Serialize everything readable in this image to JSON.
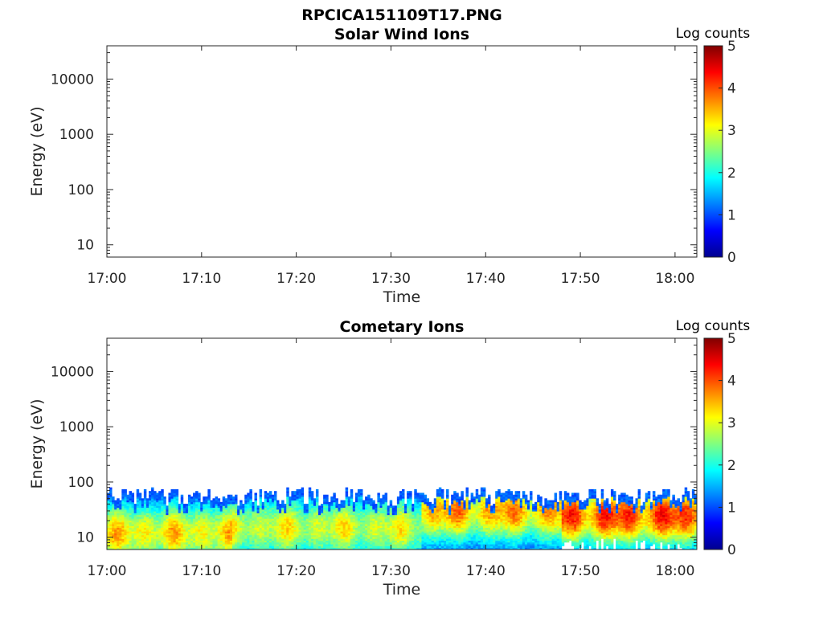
{
  "figure": {
    "title": "RPCICA151109T17.PNG"
  },
  "colors": {
    "colormap": [
      "#00008f",
      "#0000ff",
      "#0080ff",
      "#00ffff",
      "#80ff80",
      "#ffff00",
      "#ff8000",
      "#ff0000",
      "#800000"
    ],
    "axis": "#262626",
    "background": "#ffffff"
  },
  "chart_data": [
    {
      "type": "heatmap",
      "title": "Solar Wind Ions",
      "xlabel": "Time",
      "ylabel": "Energy (eV)",
      "x_ticks": [
        "17:00",
        "17:10",
        "17:20",
        "17:30",
        "17:40",
        "17:50",
        "18:00"
      ],
      "y_ticks": [
        "10",
        "100",
        "1000",
        "10000"
      ],
      "y_scale": "log",
      "x_range_minutes": [
        0,
        62.3
      ],
      "y_range_eV": [
        6,
        40000
      ],
      "grid": false,
      "colorbar": {
        "title": "Log counts",
        "ticks": [
          "0",
          "1",
          "2",
          "3",
          "4",
          "5"
        ],
        "range": [
          0,
          5
        ]
      },
      "data": []
    },
    {
      "type": "heatmap",
      "title": "Cometary Ions",
      "xlabel": "Time",
      "ylabel": "Energy (eV)",
      "x_ticks": [
        "17:00",
        "17:10",
        "17:20",
        "17:30",
        "17:40",
        "17:50",
        "18:00"
      ],
      "y_ticks": [
        "10",
        "100",
        "1000",
        "10000"
      ],
      "y_scale": "log",
      "x_range_minutes": [
        0,
        62.3
      ],
      "y_range_eV": [
        6,
        40000
      ],
      "grid": false,
      "colorbar": {
        "title": "Log counts",
        "ticks": [
          "0",
          "1",
          "2",
          "3",
          "4",
          "5"
        ],
        "range": [
          0,
          5
        ]
      },
      "data": [
        {
          "time_start": "17:00",
          "time_end": "17:13",
          "energy_eV": [
            6,
            80
          ],
          "peak_energy_eV": 12,
          "peak_log_counts": 2.8
        },
        {
          "time_start": "17:13",
          "time_end": "17:33",
          "energy_eV": [
            6,
            80
          ],
          "peak_energy_eV": 15,
          "peak_log_counts": 2.5
        },
        {
          "time_start": "17:33",
          "time_end": "17:48",
          "energy_eV": [
            6,
            80
          ],
          "peak_energy_eV": 30,
          "peak_log_counts": 3.2
        },
        {
          "time_start": "17:48",
          "time_end": "18:02",
          "energy_eV": [
            6,
            80
          ],
          "peak_energy_eV": 25,
          "peak_log_counts": 3.8
        }
      ]
    }
  ]
}
